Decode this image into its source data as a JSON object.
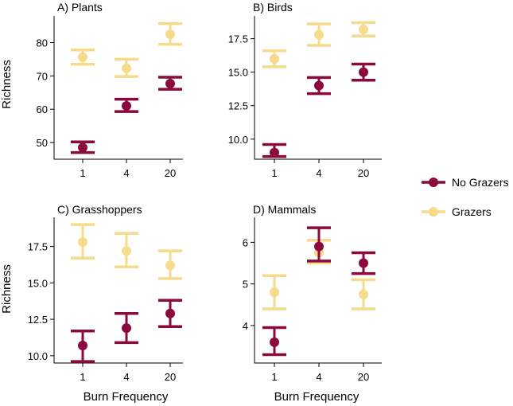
{
  "colors": {
    "no_grazers": "#8b0a3d",
    "grazers": "#f5db8b",
    "axis": "#000000"
  },
  "legend": {
    "items": [
      {
        "label": "No Grazers",
        "color": "#8b0a3d"
      },
      {
        "label": "Grazers",
        "color": "#f5db8b"
      }
    ]
  },
  "chart_data": [
    {
      "type": "scatter",
      "title": "A) Plants",
      "xlabel": "",
      "ylabel": "Richness",
      "categories": [
        "1",
        "4",
        "20"
      ],
      "ylim": [
        45,
        88
      ],
      "yticks": [
        50,
        60,
        70,
        80
      ],
      "ytick_labels": [
        "50",
        "60",
        "70",
        "80"
      ],
      "series": [
        {
          "name": "No Grazers",
          "values": [
            48.5,
            61.0,
            67.7
          ],
          "lower": [
            47.0,
            59.3,
            66.0
          ],
          "upper": [
            50.2,
            63.0,
            69.6
          ]
        },
        {
          "name": "Grazers",
          "values": [
            75.6,
            72.3,
            82.5
          ],
          "lower": [
            73.5,
            69.8,
            79.5
          ],
          "upper": [
            77.8,
            75.0,
            85.7
          ]
        }
      ]
    },
    {
      "type": "scatter",
      "title": "B) Birds",
      "xlabel": "",
      "ylabel": "",
      "categories": [
        "1",
        "4",
        "20"
      ],
      "ylim": [
        8.5,
        19.2
      ],
      "yticks": [
        10.0,
        12.5,
        15.0,
        17.5
      ],
      "ytick_labels": [
        "10.0",
        "12.5",
        "15.0",
        "17.5"
      ],
      "series": [
        {
          "name": "No Grazers",
          "values": [
            9.0,
            14.0,
            15.0
          ],
          "lower": [
            8.7,
            13.4,
            14.4
          ],
          "upper": [
            9.6,
            14.6,
            15.6
          ]
        },
        {
          "name": "Grazers",
          "values": [
            16.0,
            17.8,
            18.2
          ],
          "lower": [
            15.4,
            17.0,
            17.7
          ],
          "upper": [
            16.6,
            18.6,
            18.7
          ]
        }
      ]
    },
    {
      "type": "scatter",
      "title": "C) Grasshoppers",
      "xlabel": "Burn Frequency",
      "ylabel": "Richness",
      "categories": [
        "1",
        "4",
        "20"
      ],
      "ylim": [
        9.5,
        19.5
      ],
      "yticks": [
        10.0,
        12.5,
        15.0,
        17.5
      ],
      "ytick_labels": [
        "10.0",
        "12.5",
        "15.0",
        "17.5"
      ],
      "series": [
        {
          "name": "No Grazers",
          "values": [
            10.7,
            11.9,
            12.9
          ],
          "lower": [
            9.6,
            10.9,
            12.0
          ],
          "upper": [
            11.7,
            12.9,
            13.8
          ]
        },
        {
          "name": "Grazers",
          "values": [
            17.8,
            17.2,
            16.2
          ],
          "lower": [
            16.7,
            16.1,
            15.3
          ],
          "upper": [
            19.0,
            18.4,
            17.2
          ]
        }
      ]
    },
    {
      "type": "scatter",
      "title": "D) Mammals",
      "xlabel": "Burn Frequency",
      "ylabel": "",
      "categories": [
        "1",
        "4",
        "20"
      ],
      "ylim": [
        3.1,
        6.6
      ],
      "yticks": [
        4,
        5,
        6
      ],
      "ytick_labels": [
        "4",
        "5",
        "6"
      ],
      "series": [
        {
          "name": "No Grazers",
          "values": [
            3.6,
            5.9,
            5.5
          ],
          "lower": [
            3.3,
            5.55,
            5.25
          ],
          "upper": [
            3.95,
            6.35,
            5.75
          ]
        },
        {
          "name": "Grazers",
          "values": [
            4.8,
            5.75,
            4.75
          ],
          "lower": [
            4.4,
            5.5,
            4.4
          ],
          "upper": [
            5.2,
            6.05,
            5.1
          ]
        }
      ]
    }
  ]
}
